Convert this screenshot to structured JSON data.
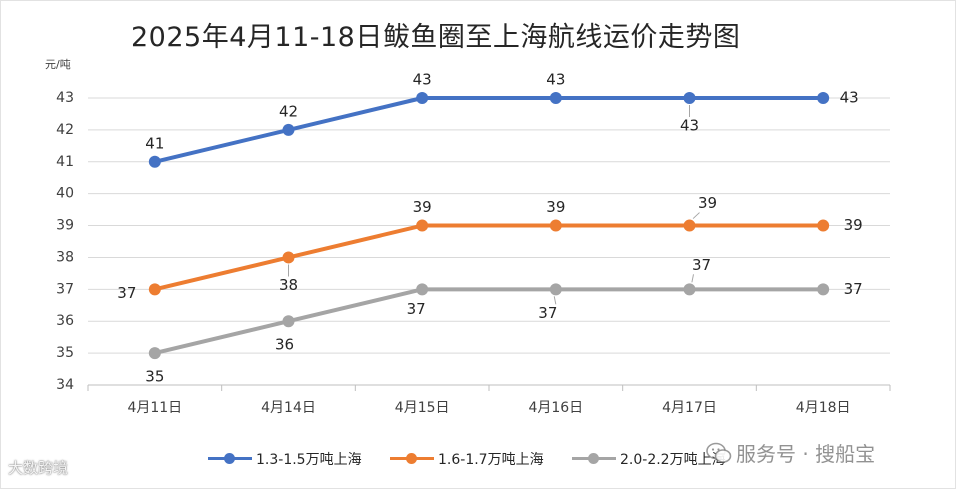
{
  "chart_data": {
    "type": "line",
    "title": "2025年4月11-18日鲅鱼圈至上海航线运价走势图",
    "ylabel": "元/吨",
    "xlabel": "",
    "categories": [
      "4月11日",
      "4月14日",
      "4月15日",
      "4月16日",
      "4月17日",
      "4月18日"
    ],
    "ylim": [
      34,
      43
    ],
    "yticks": [
      34,
      35,
      36,
      37,
      38,
      39,
      40,
      41,
      42,
      43
    ],
    "grid": true,
    "legend_position": "bottom",
    "series": [
      {
        "name": "1.3-1.5万吨上海",
        "values": [
          41,
          42,
          43,
          43,
          43,
          43
        ],
        "color": "#4472c4"
      },
      {
        "name": "1.6-1.7万吨上海",
        "values": [
          37,
          38,
          39,
          39,
          39,
          39
        ],
        "color": "#ed7d31"
      },
      {
        "name": "2.0-2.2万吨上海",
        "values": [
          35,
          36,
          37,
          37,
          37,
          37
        ],
        "color": "#a5a5a5"
      }
    ]
  },
  "watermarks": {
    "left": "大数跨境",
    "right": "服务号 · 搜船宝"
  }
}
